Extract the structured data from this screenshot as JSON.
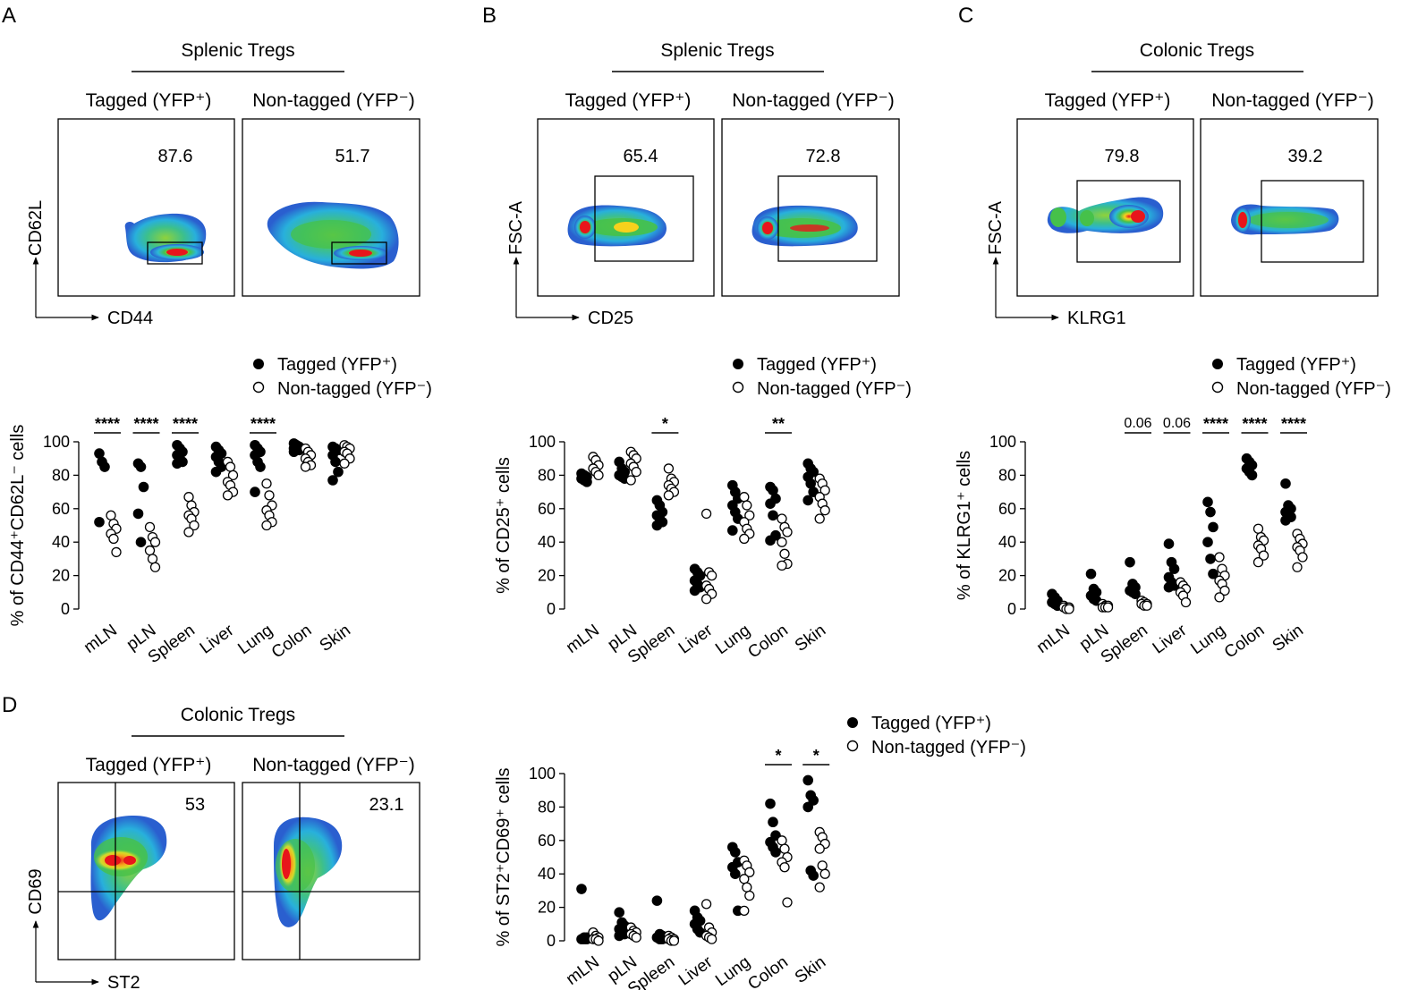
{
  "legend": {
    "tagged": "Tagged (YFP⁺)",
    "nontagged": "Non-tagged (YFP⁻)"
  },
  "flow_panels": [
    {
      "letter": "A",
      "title": "Splenic Tregs",
      "cond_left": "Tagged (YFP⁺)",
      "cond_right": "Non-tagged (YFP⁻)",
      "y_axis": "CD62L",
      "x_axis": "CD44",
      "pct_left": "87.6",
      "pct_right": "51.7"
    },
    {
      "letter": "B",
      "title": "Splenic Tregs",
      "cond_left": "Tagged (YFP⁺)",
      "cond_right": "Non-tagged (YFP⁻)",
      "y_axis": "FSC-A",
      "x_axis": "CD25",
      "pct_left": "65.4",
      "pct_right": "72.8"
    },
    {
      "letter": "C",
      "title": "Colonic Tregs",
      "cond_left": "Tagged (YFP⁺)",
      "cond_right": "Non-tagged (YFP⁻)",
      "y_axis": "FSC-A",
      "x_axis": "KLRG1",
      "pct_left": "79.8",
      "pct_right": "39.2"
    },
    {
      "letter": "D",
      "title": "Colonic Tregs",
      "cond_left": "Tagged (YFP⁺)",
      "cond_right": "Non-tagged (YFP⁻)",
      "y_axis": "CD69",
      "x_axis": "ST2",
      "pct_left": "53",
      "pct_right": "23.1"
    }
  ],
  "chart_data": [
    {
      "type": "scatter",
      "id": "A",
      "ylabel": "% of CD44⁺CD62L⁻ cells",
      "ylim": [
        0,
        100
      ],
      "yticks": [
        0,
        20,
        40,
        60,
        80,
        100
      ],
      "categories": [
        "mLN",
        "pLN",
        "Spleen",
        "Liver",
        "Lung",
        "Colon",
        "Skin"
      ],
      "series": [
        {
          "name": "Tagged (YFP⁺)",
          "values": [
            [
              93,
              88,
              85,
              52
            ],
            [
              87,
              85,
              73,
              57,
              40
            ],
            [
              98,
              96,
              94,
              92,
              90,
              88,
              87
            ],
            [
              97,
              95,
              93,
              91,
              88,
              85,
              82
            ],
            [
              98,
              96,
              94,
              92,
              88,
              85,
              70
            ],
            [
              99,
              98,
              97,
              96,
              96,
              95,
              94
            ],
            [
              97,
              96,
              95,
              92,
              88,
              82,
              77
            ]
          ]
        },
        {
          "name": "Non-tagged (YFP⁻)",
          "values": [
            [
              56,
              51,
              48,
              45,
              42,
              34
            ],
            [
              49,
              43,
              40,
              35,
              30,
              25
            ],
            [
              67,
              62,
              58,
              56,
              54,
              50,
              46
            ],
            [
              88,
              85,
              80,
              76,
              74,
              70,
              68
            ],
            [
              75,
              68,
              62,
              59,
              56,
              52,
              50
            ],
            [
              96,
              94,
              92,
              90,
              88,
              86,
              85
            ],
            [
              98,
              97,
              96,
              94,
              93,
              90,
              87
            ]
          ]
        }
      ],
      "significance": [
        "****",
        "****",
        "****",
        "",
        "****",
        "",
        ""
      ]
    },
    {
      "type": "scatter",
      "id": "B",
      "ylabel": "% of CD25⁺ cells",
      "ylim": [
        0,
        100
      ],
      "yticks": [
        0,
        20,
        40,
        60,
        80,
        100
      ],
      "categories": [
        "mLN",
        "pLN",
        "Spleen",
        "Liver",
        "Lung",
        "Colon",
        "Skin"
      ],
      "series": [
        {
          "name": "Tagged (YFP⁺)",
          "values": [
            [
              81,
              80,
              79,
              78,
              77,
              76
            ],
            [
              88,
              84,
              82,
              80,
              79,
              78
            ],
            [
              65,
              62,
              58,
              56,
              54,
              52,
              50
            ],
            [
              24,
              22,
              20,
              17,
              15,
              13,
              11
            ],
            [
              74,
              70,
              66,
              62,
              58,
              54,
              47
            ],
            [
              73,
              71,
              66,
              63,
              56,
              44,
              41
            ],
            [
              87,
              84,
              82,
              79,
              75,
              70,
              65
            ]
          ]
        },
        {
          "name": "Non-tagged (YFP⁻)",
          "values": [
            [
              91,
              89,
              86,
              84,
              82,
              80
            ],
            [
              94,
              92,
              90,
              87,
              85,
              82,
              77
            ],
            [
              84,
              78,
              76,
              74,
              72,
              70,
              68
            ],
            [
              57,
              22,
              20,
              14,
              12,
              9,
              6
            ],
            [
              67,
              62,
              56,
              52,
              48,
              45,
              42
            ],
            [
              54,
              49,
              46,
              40,
              33,
              27,
              26
            ],
            [
              78,
              75,
              71,
              67,
              63,
              59,
              54
            ]
          ]
        }
      ],
      "significance": [
        "",
        "",
        "*",
        "",
        "",
        "**",
        ""
      ]
    },
    {
      "type": "scatter",
      "id": "C",
      "ylabel": "% of KLRG1⁺ cells",
      "ylim": [
        0,
        100
      ],
      "yticks": [
        0,
        20,
        40,
        60,
        80,
        100
      ],
      "categories": [
        "mLN",
        "pLN",
        "Spleen",
        "Liver",
        "Lung",
        "Colon",
        "Skin"
      ],
      "series": [
        {
          "name": "Tagged (YFP⁺)",
          "values": [
            [
              9,
              7,
              5,
              4,
              3,
              2
            ],
            [
              21,
              12,
              10,
              8,
              6,
              5
            ],
            [
              28,
              15,
              13,
              11,
              10,
              9
            ],
            [
              39,
              28,
              24,
              19,
              16,
              14,
              13
            ],
            [
              64,
              58,
              49,
              40,
              30,
              21
            ],
            [
              90,
              88,
              86,
              84,
              82,
              80
            ],
            [
              75,
              62,
              60,
              58,
              56,
              55,
              53
            ]
          ]
        },
        {
          "name": "Non-tagged (YFP⁻)",
          "values": [
            [
              2,
              1,
              1,
              1,
              0,
              0
            ],
            [
              3,
              2,
              2,
              1,
              1,
              1
            ],
            [
              5,
              4,
              3,
              3,
              2,
              2
            ],
            [
              16,
              14,
              12,
              10,
              8,
              4
            ],
            [
              31,
              24,
              20,
              17,
              15,
              11,
              7
            ],
            [
              48,
              43,
              41,
              38,
              36,
              32,
              28
            ],
            [
              45,
              42,
              39,
              37,
              35,
              31,
              25
            ]
          ]
        }
      ],
      "significance": [
        "",
        "",
        "0.06",
        "0.06",
        "****",
        "****",
        "****"
      ]
    },
    {
      "type": "scatter",
      "id": "D",
      "ylabel": "% of ST2⁺CD69⁺ cells",
      "ylim": [
        0,
        100
      ],
      "yticks": [
        0,
        20,
        40,
        60,
        80,
        100
      ],
      "categories": [
        "mLN",
        "pLN",
        "Spleen",
        "Liver",
        "Lung",
        "Colon",
        "Skin"
      ],
      "series": [
        {
          "name": "Tagged (YFP⁺)",
          "values": [
            [
              31,
              2,
              2,
              1,
              1,
              1
            ],
            [
              17,
              11,
              9,
              7,
              6,
              4,
              3
            ],
            [
              24,
              4,
              3,
              2,
              1,
              1
            ],
            [
              18,
              14,
              12,
              10,
              7,
              5
            ],
            [
              56,
              53,
              47,
              44,
              40,
              18
            ],
            [
              82,
              71,
              63,
              59,
              56,
              53
            ],
            [
              96,
              87,
              84,
              80,
              42,
              39
            ]
          ]
        },
        {
          "name": "Non-tagged (YFP⁻)",
          "values": [
            [
              5,
              3,
              2,
              1,
              1,
              0
            ],
            [
              8,
              6,
              5,
              4,
              3,
              2
            ],
            [
              3,
              2,
              1,
              1,
              0,
              0
            ],
            [
              22,
              8,
              5,
              3,
              2,
              1
            ],
            [
              48,
              45,
              41,
              37,
              32,
              27,
              18
            ],
            [
              60,
              55,
              50,
              47,
              44,
              23
            ],
            [
              65,
              62,
              58,
              55,
              45,
              40,
              32
            ]
          ]
        }
      ],
      "significance": [
        "",
        "",
        "",
        "",
        "",
        "*",
        "*"
      ]
    }
  ]
}
